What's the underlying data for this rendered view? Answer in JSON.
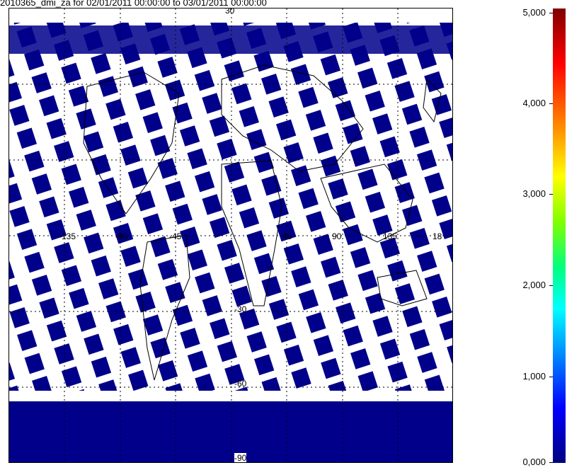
{
  "title": "2010365_dmi_za for 02/01/2011 00:00:00 to 03/01/2011 00:00:00",
  "map": {
    "lat_labels": [
      "30",
      "-30",
      "-60",
      "-90"
    ],
    "lon_labels": [
      "-135",
      "-90",
      "-45",
      "45",
      "90",
      "135",
      "18"
    ],
    "swath_color": "#00008b"
  },
  "colorbar": {
    "labels": [
      "5,000",
      "4,000",
      "3,000",
      "2,000",
      "1,000",
      "0,000"
    ],
    "min": 0,
    "max": 5000
  }
}
